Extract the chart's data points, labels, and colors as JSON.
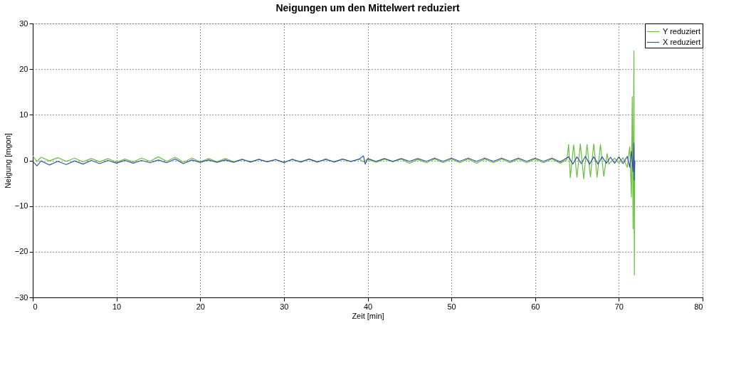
{
  "chart_data": {
    "type": "line",
    "title": "Neigungen um den Mittelwert reduziert",
    "xlabel": "Zeit [min]",
    "ylabel": "Neigung [mgon]",
    "xlim": [
      0,
      80
    ],
    "xticks": [
      0,
      10,
      20,
      30,
      40,
      50,
      60,
      70,
      80
    ],
    "ylim": [
      -30,
      30
    ],
    "yticks": [
      -30,
      -20,
      -10,
      0,
      10,
      20,
      30
    ],
    "grid": true,
    "legend": "top right",
    "line_style": "solid",
    "series": [
      {
        "name": "Y reduziert",
        "color": "#66c03c",
        "x": [
          0,
          0.5,
          1,
          2,
          3,
          4,
          5,
          6,
          7,
          8,
          9,
          10,
          11,
          12,
          13,
          14,
          15,
          16,
          17,
          18,
          19,
          20,
          21,
          22,
          23,
          24,
          25,
          26,
          27,
          28,
          29,
          30,
          31,
          32,
          33,
          34,
          35,
          36,
          37,
          38,
          39,
          39.5,
          40,
          41,
          42,
          43,
          44,
          45,
          46,
          47,
          48,
          49,
          50,
          51,
          52,
          53,
          54,
          55,
          56,
          57,
          58,
          59,
          60,
          61,
          62,
          63,
          63.8,
          64,
          64.2,
          64.6,
          65,
          65.4,
          65.8,
          66.2,
          66.6,
          67,
          67.4,
          67.8,
          68.2,
          68.6,
          68.8,
          69.5,
          70,
          70.5,
          71,
          71.3,
          71.5,
          71.6,
          71.7,
          71.8,
          71.85,
          71.9
        ],
        "values": [
          1.0,
          -0.2,
          0.7,
          -0.1,
          0.6,
          -0.2,
          0.5,
          -0.3,
          0.4,
          -0.3,
          0.4,
          -0.4,
          0.3,
          -0.3,
          0.5,
          -0.2,
          0.8,
          -0.2,
          0.7,
          -0.4,
          0.5,
          -0.3,
          0.4,
          -0.3,
          0.4,
          -0.3,
          0.3,
          -0.4,
          0.3,
          -0.3,
          0.2,
          -0.5,
          0.3,
          -0.4,
          0.3,
          -0.4,
          0.4,
          -0.4,
          0.3,
          -0.3,
          0.3,
          -0.3,
          0.3,
          -0.4,
          0.3,
          -0.3,
          0.3,
          -0.6,
          0.2,
          -0.5,
          0.3,
          -0.5,
          0.3,
          -0.5,
          0.3,
          -0.6,
          0.3,
          -0.5,
          0.3,
          -0.5,
          0.3,
          -0.5,
          0.3,
          -0.5,
          0.3,
          -0.6,
          0.2,
          3.5,
          -3.8,
          3.4,
          -3.7,
          3.6,
          -4.0,
          3.5,
          -3.6,
          3.6,
          -3.7,
          3.5,
          -3.5,
          1.5,
          -0.8,
          0.5,
          -0.6,
          0.6,
          -1.5,
          3,
          -8,
          14,
          -15,
          24,
          -25.1,
          0
        ]
      },
      {
        "name": "X reduziert",
        "color": "#3a54a4",
        "x": [
          0,
          0.5,
          1,
          2,
          3,
          4,
          5,
          6,
          7,
          8,
          9,
          10,
          11,
          12,
          13,
          14,
          15,
          16,
          17,
          18,
          19,
          20,
          21,
          22,
          23,
          24,
          25,
          26,
          27,
          28,
          29,
          30,
          31,
          32,
          33,
          34,
          35,
          36,
          37,
          38,
          39,
          39.5,
          39.7,
          40,
          41,
          42,
          43,
          44,
          45,
          46,
          47,
          48,
          49,
          50,
          51,
          52,
          53,
          54,
          55,
          56,
          57,
          58,
          59,
          60,
          61,
          62,
          63,
          64,
          64.5,
          65,
          65.5,
          66,
          66.5,
          67,
          67.5,
          68,
          68.5,
          69,
          69.5,
          70,
          70.5,
          71,
          71.3,
          71.5,
          71.7,
          71.8,
          71.85,
          71.9
        ],
        "values": [
          -0.2,
          -1.2,
          -0.1,
          -1.0,
          -0.2,
          -0.9,
          -0.1,
          -0.8,
          0.0,
          -0.7,
          0.0,
          -0.6,
          0.0,
          -0.6,
          0.0,
          -0.5,
          0.1,
          -0.5,
          0.3,
          -0.7,
          0.1,
          -0.4,
          0.1,
          -0.4,
          0.1,
          -0.4,
          0.2,
          -0.3,
          0.2,
          -0.3,
          0.2,
          -0.4,
          0.2,
          -0.3,
          0.3,
          -0.3,
          0.2,
          -0.3,
          0.3,
          -0.2,
          0.3,
          1.0,
          -0.8,
          0.4,
          -0.2,
          0.4,
          -0.2,
          0.4,
          -0.2,
          0.4,
          -0.2,
          0.5,
          -0.2,
          0.5,
          -0.2,
          0.5,
          -0.2,
          0.5,
          -0.2,
          0.5,
          -0.2,
          0.5,
          -0.2,
          0.5,
          -0.2,
          0.5,
          -0.3,
          0.8,
          -0.8,
          0.8,
          -0.7,
          0.9,
          -0.8,
          0.8,
          -0.8,
          0.8,
          -0.6,
          0.7,
          -0.6,
          0.8,
          -0.7,
          0.9,
          -1.5,
          2,
          -2.5,
          3.8,
          -4.3,
          0
        ]
      }
    ]
  }
}
